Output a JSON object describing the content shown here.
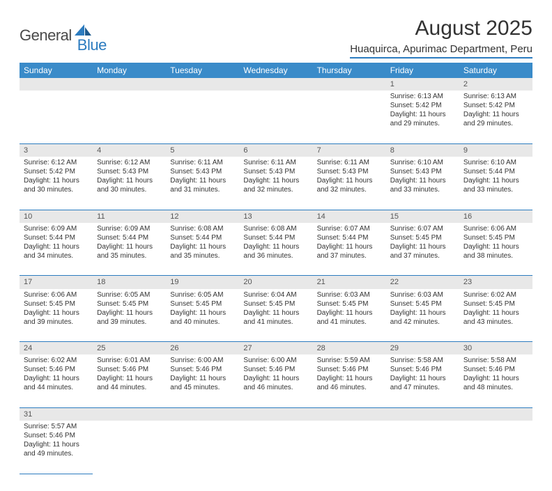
{
  "brand": {
    "part1": "General",
    "part2": "Blue"
  },
  "title": "August 2025",
  "location": "Huaquirca, Apurimac Department, Peru",
  "colors": {
    "header_bg": "#3a8bc9",
    "accent_line": "#2b7bbf",
    "daynum_bg": "#e8e8e8",
    "text": "#333333",
    "logo_dark": "#4a4a4a",
    "logo_blue": "#2b7bbf",
    "background": "#ffffff"
  },
  "weekdays": [
    "Sunday",
    "Monday",
    "Tuesday",
    "Wednesday",
    "Thursday",
    "Friday",
    "Saturday"
  ],
  "weeks": [
    [
      null,
      null,
      null,
      null,
      null,
      {
        "n": "1",
        "sr": "Sunrise: 6:13 AM",
        "ss": "Sunset: 5:42 PM",
        "dl": "Daylight: 11 hours and 29 minutes."
      },
      {
        "n": "2",
        "sr": "Sunrise: 6:13 AM",
        "ss": "Sunset: 5:42 PM",
        "dl": "Daylight: 11 hours and 29 minutes."
      }
    ],
    [
      {
        "n": "3",
        "sr": "Sunrise: 6:12 AM",
        "ss": "Sunset: 5:42 PM",
        "dl": "Daylight: 11 hours and 30 minutes."
      },
      {
        "n": "4",
        "sr": "Sunrise: 6:12 AM",
        "ss": "Sunset: 5:43 PM",
        "dl": "Daylight: 11 hours and 30 minutes."
      },
      {
        "n": "5",
        "sr": "Sunrise: 6:11 AM",
        "ss": "Sunset: 5:43 PM",
        "dl": "Daylight: 11 hours and 31 minutes."
      },
      {
        "n": "6",
        "sr": "Sunrise: 6:11 AM",
        "ss": "Sunset: 5:43 PM",
        "dl": "Daylight: 11 hours and 32 minutes."
      },
      {
        "n": "7",
        "sr": "Sunrise: 6:11 AM",
        "ss": "Sunset: 5:43 PM",
        "dl": "Daylight: 11 hours and 32 minutes."
      },
      {
        "n": "8",
        "sr": "Sunrise: 6:10 AM",
        "ss": "Sunset: 5:43 PM",
        "dl": "Daylight: 11 hours and 33 minutes."
      },
      {
        "n": "9",
        "sr": "Sunrise: 6:10 AM",
        "ss": "Sunset: 5:44 PM",
        "dl": "Daylight: 11 hours and 33 minutes."
      }
    ],
    [
      {
        "n": "10",
        "sr": "Sunrise: 6:09 AM",
        "ss": "Sunset: 5:44 PM",
        "dl": "Daylight: 11 hours and 34 minutes."
      },
      {
        "n": "11",
        "sr": "Sunrise: 6:09 AM",
        "ss": "Sunset: 5:44 PM",
        "dl": "Daylight: 11 hours and 35 minutes."
      },
      {
        "n": "12",
        "sr": "Sunrise: 6:08 AM",
        "ss": "Sunset: 5:44 PM",
        "dl": "Daylight: 11 hours and 35 minutes."
      },
      {
        "n": "13",
        "sr": "Sunrise: 6:08 AM",
        "ss": "Sunset: 5:44 PM",
        "dl": "Daylight: 11 hours and 36 minutes."
      },
      {
        "n": "14",
        "sr": "Sunrise: 6:07 AM",
        "ss": "Sunset: 5:44 PM",
        "dl": "Daylight: 11 hours and 37 minutes."
      },
      {
        "n": "15",
        "sr": "Sunrise: 6:07 AM",
        "ss": "Sunset: 5:45 PM",
        "dl": "Daylight: 11 hours and 37 minutes."
      },
      {
        "n": "16",
        "sr": "Sunrise: 6:06 AM",
        "ss": "Sunset: 5:45 PM",
        "dl": "Daylight: 11 hours and 38 minutes."
      }
    ],
    [
      {
        "n": "17",
        "sr": "Sunrise: 6:06 AM",
        "ss": "Sunset: 5:45 PM",
        "dl": "Daylight: 11 hours and 39 minutes."
      },
      {
        "n": "18",
        "sr": "Sunrise: 6:05 AM",
        "ss": "Sunset: 5:45 PM",
        "dl": "Daylight: 11 hours and 39 minutes."
      },
      {
        "n": "19",
        "sr": "Sunrise: 6:05 AM",
        "ss": "Sunset: 5:45 PM",
        "dl": "Daylight: 11 hours and 40 minutes."
      },
      {
        "n": "20",
        "sr": "Sunrise: 6:04 AM",
        "ss": "Sunset: 5:45 PM",
        "dl": "Daylight: 11 hours and 41 minutes."
      },
      {
        "n": "21",
        "sr": "Sunrise: 6:03 AM",
        "ss": "Sunset: 5:45 PM",
        "dl": "Daylight: 11 hours and 41 minutes."
      },
      {
        "n": "22",
        "sr": "Sunrise: 6:03 AM",
        "ss": "Sunset: 5:45 PM",
        "dl": "Daylight: 11 hours and 42 minutes."
      },
      {
        "n": "23",
        "sr": "Sunrise: 6:02 AM",
        "ss": "Sunset: 5:45 PM",
        "dl": "Daylight: 11 hours and 43 minutes."
      }
    ],
    [
      {
        "n": "24",
        "sr": "Sunrise: 6:02 AM",
        "ss": "Sunset: 5:46 PM",
        "dl": "Daylight: 11 hours and 44 minutes."
      },
      {
        "n": "25",
        "sr": "Sunrise: 6:01 AM",
        "ss": "Sunset: 5:46 PM",
        "dl": "Daylight: 11 hours and 44 minutes."
      },
      {
        "n": "26",
        "sr": "Sunrise: 6:00 AM",
        "ss": "Sunset: 5:46 PM",
        "dl": "Daylight: 11 hours and 45 minutes."
      },
      {
        "n": "27",
        "sr": "Sunrise: 6:00 AM",
        "ss": "Sunset: 5:46 PM",
        "dl": "Daylight: 11 hours and 46 minutes."
      },
      {
        "n": "28",
        "sr": "Sunrise: 5:59 AM",
        "ss": "Sunset: 5:46 PM",
        "dl": "Daylight: 11 hours and 46 minutes."
      },
      {
        "n": "29",
        "sr": "Sunrise: 5:58 AM",
        "ss": "Sunset: 5:46 PM",
        "dl": "Daylight: 11 hours and 47 minutes."
      },
      {
        "n": "30",
        "sr": "Sunrise: 5:58 AM",
        "ss": "Sunset: 5:46 PM",
        "dl": "Daylight: 11 hours and 48 minutes."
      }
    ],
    [
      {
        "n": "31",
        "sr": "Sunrise: 5:57 AM",
        "ss": "Sunset: 5:46 PM",
        "dl": "Daylight: 11 hours and 49 minutes."
      },
      null,
      null,
      null,
      null,
      null,
      null
    ]
  ]
}
